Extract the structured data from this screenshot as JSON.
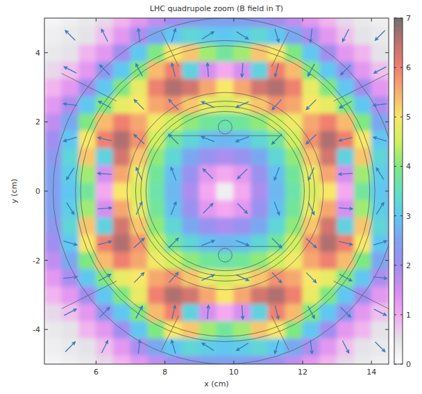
{
  "chart_data": {
    "type": "heatmap",
    "title": "LHC quadrupole zoom (B field in T)",
    "x_label": "x (cm)",
    "y_label": "y (cm)",
    "xlim": [
      4.5,
      14.5
    ],
    "ylim": [
      -5,
      5
    ],
    "xticks": [
      6,
      8,
      10,
      12,
      14
    ],
    "yticks": [
      -4,
      -2,
      0,
      2,
      4
    ],
    "grid": false,
    "x": [
      4.75,
      5.25,
      5.75,
      6.25,
      6.75,
      7.25,
      7.75,
      8.25,
      8.75,
      9.25,
      9.75,
      10.25,
      10.75,
      11.25,
      11.75,
      12.25,
      12.75,
      13.25,
      13.75,
      14.25,
      14.75
    ],
    "y": [
      -5,
      -4.5,
      -4,
      -3.5,
      -3,
      -2.5,
      -2,
      -1.5,
      -1,
      -0.5,
      0,
      0.5,
      1,
      1.5,
      2,
      2.5,
      3,
      3.5,
      4,
      4.5,
      5
    ],
    "values": [
      [
        0.2,
        0.3,
        0.4,
        0.6,
        0.9,
        1.3,
        1.7,
        2.0,
        2.3,
        2.5,
        2.5,
        2.5,
        2.3,
        2.0,
        1.7,
        1.3,
        0.9,
        0.6,
        0.4,
        0.3,
        0.2
      ],
      [
        0.3,
        0.4,
        0.5,
        0.8,
        1.3,
        1.9,
        2.6,
        3.0,
        3.3,
        3.1,
        3.0,
        3.1,
        3.3,
        3.0,
        2.6,
        1.9,
        1.3,
        0.8,
        0.5,
        0.4,
        0.3
      ],
      [
        0.4,
        0.5,
        0.9,
        1.3,
        2.0,
        3.0,
        4.0,
        5.0,
        5.3,
        4.2,
        3.8,
        4.2,
        5.3,
        5.0,
        4.0,
        3.0,
        2.0,
        1.3,
        0.9,
        0.5,
        0.4
      ],
      [
        0.6,
        0.8,
        1.3,
        2.2,
        3.0,
        4.0,
        5.4,
        6.0,
        3.2,
        1.5,
        1.0,
        1.5,
        3.2,
        6.0,
        5.4,
        4.0,
        3.0,
        2.2,
        1.3,
        0.8,
        0.6
      ],
      [
        0.9,
        1.3,
        2.0,
        3.0,
        4.0,
        4.8,
        6.0,
        6.6,
        6.3,
        5.6,
        5.0,
        5.6,
        6.3,
        6.6,
        6.0,
        4.8,
        4.0,
        3.0,
        2.0,
        1.3,
        0.9
      ],
      [
        1.3,
        1.9,
        3.0,
        4.0,
        4.8,
        5.0,
        5.6,
        5.8,
        5.3,
        4.8,
        4.6,
        4.8,
        5.3,
        5.8,
        5.6,
        5.0,
        4.8,
        4.0,
        3.0,
        1.9,
        1.3
      ],
      [
        1.7,
        2.6,
        4.0,
        5.4,
        6.0,
        5.6,
        4.9,
        4.5,
        4.1,
        3.8,
        3.7,
        3.8,
        4.1,
        4.5,
        4.9,
        5.6,
        6.0,
        5.4,
        4.0,
        2.6,
        1.7
      ],
      [
        2.0,
        3.0,
        5.0,
        6.0,
        6.6,
        5.8,
        4.5,
        3.8,
        3.3,
        2.9,
        2.8,
        2.9,
        3.3,
        3.8,
        4.5,
        5.8,
        6.6,
        6.0,
        5.0,
        3.0,
        2.0
      ],
      [
        2.3,
        3.3,
        5.3,
        3.2,
        6.3,
        5.3,
        4.1,
        3.3,
        2.6,
        2.1,
        1.9,
        2.1,
        2.6,
        3.3,
        4.1,
        5.3,
        6.3,
        3.2,
        5.3,
        3.3,
        2.3
      ],
      [
        2.5,
        3.1,
        4.2,
        1.5,
        5.6,
        4.8,
        3.8,
        2.9,
        2.1,
        1.3,
        1.0,
        1.3,
        2.1,
        2.9,
        3.8,
        4.8,
        5.6,
        1.5,
        4.2,
        3.1,
        2.5
      ],
      [
        2.5,
        3.0,
        3.8,
        1.0,
        5.0,
        4.6,
        3.7,
        2.8,
        1.9,
        1.0,
        0.3,
        1.0,
        1.9,
        2.8,
        3.7,
        4.6,
        5.0,
        1.0,
        3.8,
        3.0,
        2.5
      ],
      [
        2.5,
        3.1,
        4.2,
        1.5,
        5.6,
        4.8,
        3.8,
        2.9,
        2.1,
        1.3,
        1.0,
        1.3,
        2.1,
        2.9,
        3.8,
        4.8,
        5.6,
        1.5,
        4.2,
        3.1,
        2.5
      ],
      [
        2.3,
        3.3,
        5.3,
        3.2,
        6.3,
        5.3,
        4.1,
        3.3,
        2.6,
        2.1,
        1.9,
        2.1,
        2.6,
        3.3,
        4.1,
        5.3,
        6.3,
        3.2,
        5.3,
        3.3,
        2.3
      ],
      [
        2.0,
        3.0,
        5.0,
        6.0,
        6.6,
        5.8,
        4.5,
        3.8,
        3.3,
        2.9,
        2.8,
        2.9,
        3.3,
        3.8,
        4.5,
        5.8,
        6.6,
        6.0,
        5.0,
        3.0,
        2.0
      ],
      [
        1.7,
        2.6,
        4.0,
        5.4,
        6.0,
        5.6,
        4.9,
        4.5,
        4.1,
        3.8,
        3.7,
        3.8,
        4.1,
        4.5,
        4.9,
        5.6,
        6.0,
        5.4,
        4.0,
        2.6,
        1.7
      ],
      [
        1.3,
        1.9,
        3.0,
        4.0,
        4.8,
        5.0,
        5.6,
        5.8,
        5.3,
        4.8,
        4.6,
        4.8,
        5.3,
        5.8,
        5.6,
        5.0,
        4.8,
        4.0,
        3.0,
        1.9,
        1.3
      ],
      [
        0.9,
        1.3,
        2.0,
        3.0,
        4.0,
        4.8,
        6.0,
        6.6,
        6.3,
        5.6,
        5.0,
        5.6,
        6.3,
        6.6,
        6.0,
        4.8,
        4.0,
        3.0,
        2.0,
        1.3,
        0.9
      ],
      [
        0.6,
        0.8,
        1.3,
        2.2,
        3.0,
        4.0,
        5.4,
        6.0,
        3.2,
        1.5,
        1.0,
        1.5,
        3.2,
        6.0,
        5.4,
        4.0,
        3.0,
        2.2,
        1.3,
        0.8,
        0.6
      ],
      [
        0.4,
        0.5,
        0.9,
        1.3,
        2.0,
        3.0,
        4.0,
        5.0,
        5.3,
        4.2,
        3.8,
        4.2,
        5.3,
        5.0,
        4.0,
        3.0,
        2.0,
        1.3,
        0.9,
        0.5,
        0.4
      ],
      [
        0.3,
        0.4,
        0.5,
        0.8,
        1.3,
        1.9,
        2.6,
        3.0,
        3.3,
        3.1,
        3.0,
        3.1,
        3.3,
        3.0,
        2.6,
        1.9,
        1.3,
        0.8,
        0.5,
        0.4,
        0.3
      ],
      [
        0.2,
        0.3,
        0.4,
        0.6,
        0.9,
        1.3,
        1.7,
        2.0,
        2.3,
        2.5,
        2.5,
        2.5,
        2.3,
        2.0,
        1.7,
        1.3,
        0.9,
        0.6,
        0.4,
        0.3,
        0.2
      ]
    ],
    "colorbar": {
      "range": [
        0,
        7
      ],
      "ticks": [
        0,
        1,
        2,
        3,
        4,
        5,
        6,
        7
      ]
    },
    "arrows": {
      "x": [
        5.25,
        6.25,
        7.25,
        8.25,
        9.25,
        10.25,
        11.25,
        12.25,
        13.25,
        14.25
      ],
      "y": [
        -4.5,
        -3.5,
        -2.5,
        -1.5,
        -0.5,
        0.5,
        1.5,
        2.5,
        3.5,
        4.5
      ],
      "angle": [
        [
          45,
          63,
          83,
          107,
          148,
          212,
          253,
          277,
          297,
          315
        ],
        [
          27,
          45,
          62,
          76,
          86,
          274,
          284,
          298,
          315,
          333
        ],
        [
          7,
          28,
          45,
          48,
          25,
          335,
          312,
          315,
          332,
          353
        ],
        [
          343,
          14,
          42,
          45,
          21,
          339,
          315,
          318,
          346,
          17
        ],
        [
          302,
          4,
          65,
          69,
          45,
          315,
          291,
          295,
          356,
          58
        ],
        [
          238,
          176,
          115,
          111,
          135,
          225,
          249,
          245,
          184,
          122
        ],
        [
          197,
          166,
          138,
          135,
          159,
          201,
          225,
          222,
          194,
          163
        ],
        [
          173,
          152,
          135,
          132,
          155,
          205,
          228,
          225,
          208,
          187
        ],
        [
          153,
          135,
          118,
          104,
          94,
          266,
          256,
          242,
          225,
          207
        ],
        [
          135,
          117,
          97,
          73,
          32,
          328,
          287,
          263,
          243,
          225
        ]
      ]
    },
    "outlines": {
      "circles": [
        {
          "cx": 9.75,
          "cy": 0,
          "r": 2.3
        },
        {
          "cx": 9.75,
          "cy": 0,
          "r": 2.45
        },
        {
          "cx": 9.75,
          "cy": 0,
          "r": 2.6
        },
        {
          "cx": 9.75,
          "cy": 0,
          "r": 2.85
        },
        {
          "cx": 9.75,
          "cy": 0,
          "r": 4.2
        },
        {
          "cx": 9.75,
          "cy": 0,
          "r": 4.35
        },
        {
          "cx": 9.75,
          "cy": 0,
          "r": 5.0
        },
        {
          "cx": 9.75,
          "cy": 1.85,
          "r": 0.2
        },
        {
          "cx": 9.75,
          "cy": -1.85,
          "r": 0.2
        }
      ],
      "lines": [
        [
          8.1,
          1.6,
          11.4,
          1.6
        ],
        [
          8.1,
          -1.6,
          11.4,
          -1.6
        ],
        [
          5.0,
          3.4,
          6.6,
          2.6
        ],
        [
          14.5,
          3.4,
          12.9,
          2.6
        ],
        [
          5.0,
          -3.4,
          6.6,
          -2.6
        ],
        [
          14.5,
          -3.4,
          12.9,
          -2.6
        ],
        [
          7.9,
          4.6,
          8.4,
          3.6
        ],
        [
          11.6,
          4.6,
          11.1,
          3.6
        ],
        [
          7.9,
          -4.6,
          8.4,
          -3.6
        ],
        [
          11.6,
          -4.6,
          11.1,
          -3.6
        ]
      ]
    }
  }
}
